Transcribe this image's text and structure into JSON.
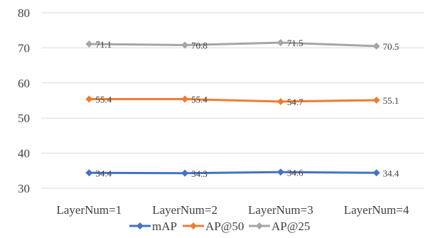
{
  "chart_data": {
    "type": "line",
    "title": "",
    "xlabel": "",
    "ylabel": "",
    "categories": [
      "LayerNum=1",
      "LayerNum=2",
      "LayerNum=3",
      "LayerNum=4"
    ],
    "ylim": [
      30,
      80
    ],
    "yticks": [
      30,
      40,
      50,
      60,
      70,
      80
    ],
    "grid": true,
    "legend_position": "bottom",
    "series": [
      {
        "name": "mAP",
        "values": [
          34.4,
          34.3,
          34.6,
          34.4
        ],
        "labels": [
          "34.4",
          "34.3",
          "34.6",
          "34.4"
        ],
        "color": "#4472c4"
      },
      {
        "name": "AP@50",
        "values": [
          55.4,
          55.4,
          54.7,
          55.1
        ],
        "labels": [
          "55.4",
          "55.4",
          "54.7",
          "55.1"
        ],
        "color": "#ed7d31"
      },
      {
        "name": "AP@25",
        "values": [
          71.1,
          70.8,
          71.5,
          70.5
        ],
        "labels": [
          "71.1",
          "70.8",
          "71.5",
          "70.5"
        ],
        "color": "#a5a5a5"
      }
    ]
  }
}
